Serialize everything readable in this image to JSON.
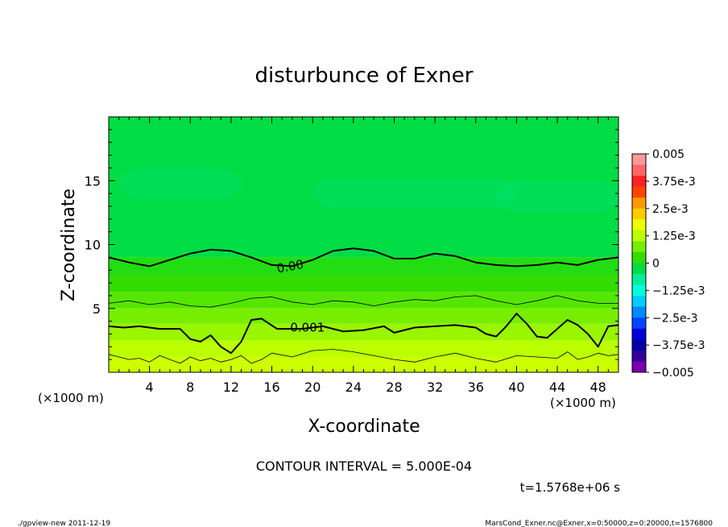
{
  "chart_data": {
    "type": "heatmap",
    "title": "disturbunce of Exner",
    "xlabel": "X-coordinate",
    "ylabel": "Z-coordinate",
    "x_unit_left": "(×1000 m)",
    "x_unit_right": "(×1000 m)",
    "xlim": [
      0,
      50
    ],
    "ylim": [
      0,
      20
    ],
    "x_ticks": [
      4,
      8,
      12,
      16,
      20,
      24,
      28,
      32,
      36,
      40,
      44,
      48
    ],
    "y_ticks": [
      5,
      10,
      15
    ],
    "contour_labels": [
      {
        "text": "0.00",
        "x": 16.5,
        "z": 8.1
      },
      {
        "text": "0.001",
        "x": 17.8,
        "z": 3.5
      }
    ],
    "contour_lines": [
      {
        "level": "0",
        "x": [
          0,
          2,
          4,
          6,
          8,
          10,
          12,
          14,
          16,
          18,
          20,
          22,
          24,
          26,
          28,
          30,
          32,
          34,
          36,
          38,
          40,
          42,
          44,
          46,
          48,
          50
        ],
        "z": [
          9.0,
          8.6,
          8.3,
          8.8,
          9.3,
          9.6,
          9.5,
          9.0,
          8.4,
          8.3,
          8.8,
          9.5,
          9.7,
          9.5,
          8.9,
          8.9,
          9.3,
          9.1,
          8.6,
          8.4,
          8.3,
          8.4,
          8.6,
          8.4,
          8.8,
          9.0
        ]
      },
      {
        "level": "0.0005",
        "x": [
          0,
          2,
          4,
          6,
          8,
          10,
          12,
          14,
          16,
          18,
          20,
          22,
          24,
          26,
          28,
          30,
          32,
          34,
          36,
          38,
          40,
          42,
          44,
          46,
          48,
          50
        ],
        "z": [
          5.4,
          5.6,
          5.3,
          5.5,
          5.2,
          5.1,
          5.4,
          5.8,
          5.9,
          5.5,
          5.3,
          5.6,
          5.5,
          5.2,
          5.5,
          5.7,
          5.6,
          5.9,
          6.0,
          5.6,
          5.3,
          5.6,
          6.0,
          5.6,
          5.4,
          5.4
        ]
      },
      {
        "level": "0.001",
        "x": [
          0,
          1.5,
          3,
          5,
          7,
          8,
          9,
          10,
          11,
          12,
          13,
          14,
          15,
          16.5,
          19,
          21,
          23,
          25,
          27,
          28,
          30,
          32,
          34,
          36,
          37,
          38,
          39,
          40,
          41,
          42,
          43,
          44,
          45,
          46,
          47,
          48,
          49,
          50
        ],
        "z": [
          3.6,
          3.5,
          3.6,
          3.4,
          3.4,
          2.6,
          2.4,
          2.9,
          2.0,
          1.5,
          2.4,
          4.1,
          4.2,
          3.4,
          3.4,
          3.6,
          3.2,
          3.3,
          3.6,
          3.1,
          3.5,
          3.6,
          3.7,
          3.5,
          3.0,
          2.8,
          3.6,
          4.6,
          3.8,
          2.8,
          2.7,
          3.4,
          4.1,
          3.7,
          3.0,
          2.0,
          3.6,
          3.7
        ]
      },
      {
        "level": "0.0015",
        "x": [
          0,
          1,
          2,
          3,
          4,
          5,
          6,
          7,
          8,
          9,
          10,
          11,
          12,
          13,
          14,
          15,
          16,
          18,
          20,
          22,
          24,
          26,
          28,
          30,
          32,
          34,
          36,
          38,
          40,
          42,
          44,
          45,
          46,
          47,
          48,
          49,
          50
        ],
        "z": [
          1.4,
          1.2,
          1.0,
          1.1,
          0.8,
          1.3,
          1.0,
          0.7,
          1.2,
          0.9,
          1.1,
          0.8,
          1.0,
          1.3,
          0.7,
          1.0,
          1.5,
          1.2,
          1.7,
          1.8,
          1.6,
          1.3,
          1.0,
          0.8,
          1.2,
          1.5,
          1.1,
          0.8,
          1.3,
          1.2,
          1.1,
          1.6,
          1.0,
          1.2,
          1.5,
          1.3,
          1.4
        ]
      }
    ],
    "colorbar": {
      "labels": [
        "0.005",
        "3.75e-3",
        "2.5e-3",
        "1.25e-3",
        "0",
        "−1.25e-3",
        "−2.5e-3",
        "−3.75e-3",
        "−0.005"
      ],
      "range": [
        -0.005,
        0.005
      ],
      "colors": [
        "#ff9999",
        "#ff6666",
        "#ff2222",
        "#ff4400",
        "#ff9900",
        "#ffcc00",
        "#eeff00",
        "#bbff00",
        "#77ee00",
        "#33dd00",
        "#00dd44",
        "#00ee99",
        "#00ffdd",
        "#00ccff",
        "#0088ff",
        "#0044ff",
        "#0000dd",
        "#0000aa",
        "#330099",
        "#7700aa"
      ]
    },
    "field_bands": [
      {
        "z": [
          0,
          1.2
        ],
        "color": "#ccff00"
      },
      {
        "z": [
          1.2,
          2.5
        ],
        "color": "#bbff00"
      },
      {
        "z": [
          2.5,
          3.8
        ],
        "color": "#99f500"
      },
      {
        "z": [
          3.8,
          5.0
        ],
        "color": "#77ee00"
      },
      {
        "z": [
          5.0,
          6.3
        ],
        "color": "#55e600"
      },
      {
        "z": [
          6.3,
          7.6
        ],
        "color": "#33dd00"
      },
      {
        "z": [
          7.6,
          9.0
        ],
        "color": "#22dd11"
      },
      {
        "z": [
          9.0,
          20.0
        ],
        "color": "#00dd44"
      }
    ],
    "field_patches": [
      {
        "x": [
          1,
          13
        ],
        "z": [
          13.5,
          16.0
        ],
        "color": "#00e066"
      },
      {
        "x": [
          20,
          40
        ],
        "z": [
          12.8,
          15.2
        ],
        "color": "#00e066"
      },
      {
        "x": [
          38,
          50
        ],
        "z": [
          12.5,
          15.0
        ],
        "color": "#00e066"
      }
    ]
  },
  "contour_interval": "CONTOUR INTERVAL = 5.000E-04",
  "time_label": "t=1.5768e+06 s",
  "footer_left": "./gpview-new  2011-12-19",
  "footer_right": "MarsCond_Exner.nc@Exner,x=0:50000,z=0:20000,t=1576800"
}
